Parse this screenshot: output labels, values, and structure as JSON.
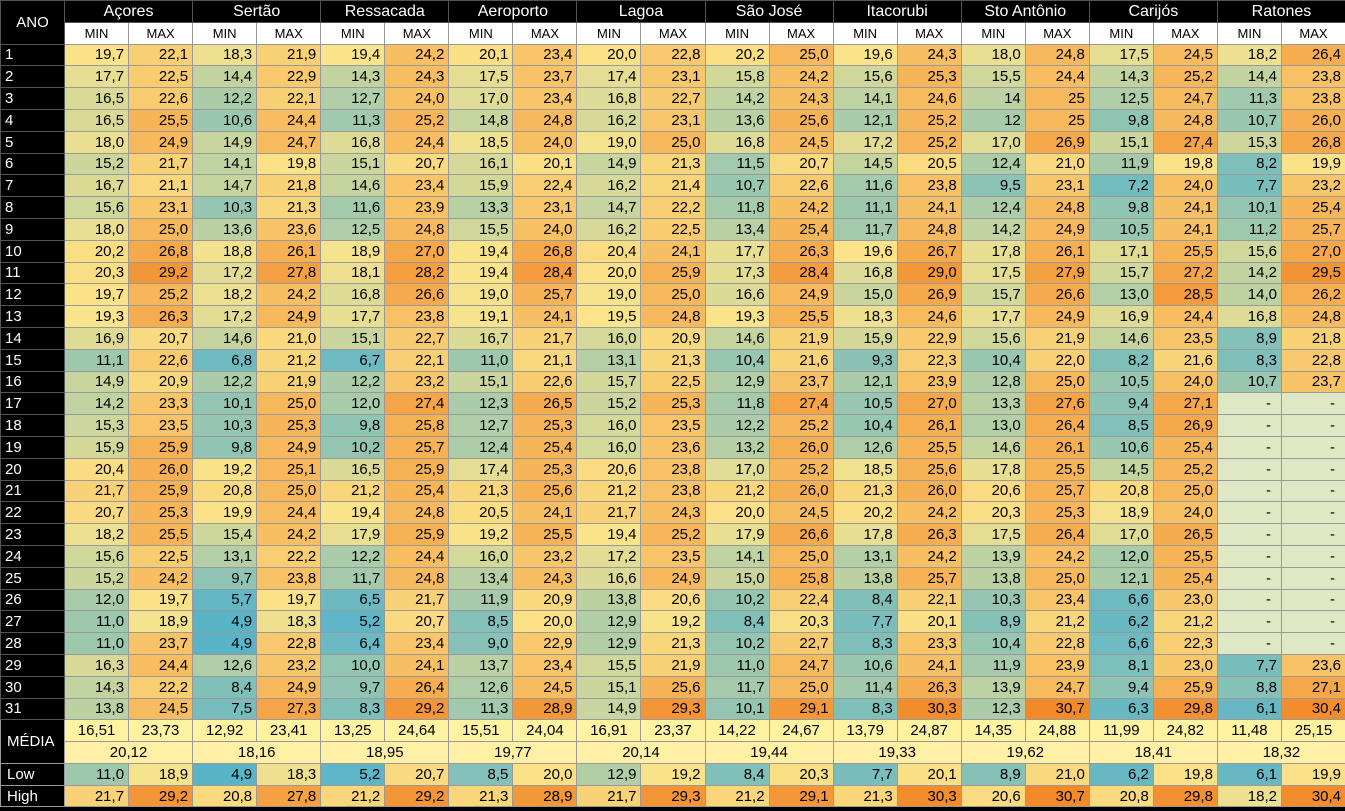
{
  "header": {
    "ano": "ANO",
    "min": "MIN",
    "max": "MAX"
  },
  "stations": [
    "Açores",
    "Sertão",
    "Ressacada",
    "Aeroporto",
    "Lagoa",
    "São José",
    "Itacorubi",
    "Sto Antônio",
    "Carijós",
    "Ratones"
  ],
  "rows": [
    {
      "label": "1",
      "values": [
        "19,7",
        "22,1",
        "18,3",
        "21,9",
        "19,4",
        "24,2",
        "20,1",
        "23,4",
        "20,0",
        "22,8",
        "20,2",
        "25,0",
        "19,6",
        "24,3",
        "18,0",
        "24,8",
        "17,5",
        "24,5",
        "18,2",
        "26,4"
      ]
    },
    {
      "label": "2",
      "values": [
        "17,7",
        "22,5",
        "14,4",
        "22,9",
        "14,3",
        "24,3",
        "17,5",
        "23,7",
        "17,4",
        "23,1",
        "15,8",
        "24,2",
        "15,6",
        "25,3",
        "15,5",
        "24,4",
        "14,3",
        "25,2",
        "14,4",
        "23,8"
      ]
    },
    {
      "label": "3",
      "values": [
        "16,5",
        "22,6",
        "12,2",
        "22,1",
        "12,7",
        "24,0",
        "17,0",
        "23,4",
        "16,8",
        "22,7",
        "14,2",
        "24,3",
        "14,1",
        "24,6",
        "14",
        "25",
        "12,5",
        "24,7",
        "11,3",
        "23,8"
      ]
    },
    {
      "label": "4",
      "values": [
        "16,5",
        "25,5",
        "10,6",
        "24,4",
        "11,3",
        "25,2",
        "14,8",
        "24,8",
        "16,2",
        "23,1",
        "13,6",
        "25,6",
        "12,1",
        "25,2",
        "12",
        "25",
        "9,8",
        "24,8",
        "10,7",
        "26,0"
      ]
    },
    {
      "label": "5",
      "values": [
        "18,0",
        "24,9",
        "14,9",
        "24,7",
        "16,8",
        "24,4",
        "18,5",
        "24,0",
        "19,0",
        "25,0",
        "16,8",
        "24,5",
        "17,2",
        "25,2",
        "17,0",
        "26,9",
        "15,1",
        "27,4",
        "15,3",
        "26,8"
      ]
    },
    {
      "label": "6",
      "values": [
        "15,2",
        "21,7",
        "14,1",
        "19,8",
        "15,1",
        "20,7",
        "16,1",
        "20,1",
        "14,9",
        "21,3",
        "11,5",
        "20,7",
        "14,5",
        "20,5",
        "12,4",
        "21,0",
        "11,9",
        "19,8",
        "8,2",
        "19,9"
      ]
    },
    {
      "label": "7",
      "values": [
        "16,7",
        "21,1",
        "14,7",
        "21,8",
        "14,6",
        "23,4",
        "15,9",
        "22,4",
        "16,2",
        "21,4",
        "10,7",
        "22,6",
        "11,6",
        "23,8",
        "9,5",
        "23,1",
        "7,2",
        "24,0",
        "7,7",
        "23,2"
      ]
    },
    {
      "label": "8",
      "values": [
        "15,6",
        "23,1",
        "10,3",
        "21,3",
        "11,6",
        "23,9",
        "13,3",
        "23,1",
        "14,7",
        "22,2",
        "11,8",
        "24,2",
        "11,1",
        "24,1",
        "12,4",
        "24,8",
        "9,8",
        "24,1",
        "10,1",
        "25,4"
      ]
    },
    {
      "label": "9",
      "values": [
        "18,0",
        "25,0",
        "13,6",
        "23,6",
        "12,5",
        "24,8",
        "15,5",
        "24,0",
        "16,2",
        "22,5",
        "13,4",
        "25,4",
        "11,7",
        "24,8",
        "14,2",
        "24,9",
        "10,5",
        "24,1",
        "11,2",
        "25,7"
      ]
    },
    {
      "label": "10",
      "values": [
        "20,2",
        "26,8",
        "18,8",
        "26,1",
        "18,9",
        "27,0",
        "19,4",
        "26,8",
        "20,4",
        "24,1",
        "17,7",
        "26,3",
        "19,6",
        "26,7",
        "17,8",
        "26,1",
        "17,1",
        "25,5",
        "15,6",
        "27,0"
      ]
    },
    {
      "label": "11",
      "values": [
        "20,3",
        "29,2",
        "17,2",
        "27,8",
        "18,1",
        "28,2",
        "19,4",
        "28,4",
        "20,0",
        "25,9",
        "17,3",
        "28,4",
        "16,8",
        "29,0",
        "17,5",
        "27,9",
        "15,7",
        "27,2",
        "14,2",
        "29,5"
      ]
    },
    {
      "label": "12",
      "values": [
        "19,7",
        "25,2",
        "18,2",
        "24,2",
        "16,8",
        "26,6",
        "19,0",
        "25,7",
        "19,0",
        "25,0",
        "16,6",
        "24,9",
        "15,0",
        "26,9",
        "15,7",
        "26,6",
        "13,0",
        "28,5",
        "14,0",
        "26,2"
      ]
    },
    {
      "label": "13",
      "values": [
        "19,3",
        "26,3",
        "17,2",
        "24,9",
        "17,7",
        "23,8",
        "19,1",
        "24,1",
        "19,5",
        "24,8",
        "19,3",
        "25,5",
        "18,3",
        "24,6",
        "17,7",
        "24,9",
        "16,9",
        "24,4",
        "16,8",
        "24,8"
      ]
    },
    {
      "label": "14",
      "values": [
        "16,9",
        "20,7",
        "14,6",
        "21,0",
        "15,1",
        "22,7",
        "16,7",
        "21,7",
        "16,0",
        "20,9",
        "14,6",
        "21,9",
        "15,9",
        "22,9",
        "15,6",
        "21,9",
        "14,6",
        "23,5",
        "8,9",
        "21,8"
      ]
    },
    {
      "label": "15",
      "values": [
        "11,1",
        "22,6",
        "6,8",
        "21,2",
        "6,7",
        "22,1",
        "11,0",
        "21,1",
        "13,1",
        "21,3",
        "10,4",
        "21,6",
        "9,3",
        "22,3",
        "10,4",
        "22,0",
        "8,2",
        "21,6",
        "8,3",
        "22,8"
      ]
    },
    {
      "label": "16",
      "values": [
        "14,9",
        "20,9",
        "12,2",
        "21,9",
        "12,2",
        "23,2",
        "15,1",
        "22,6",
        "15,7",
        "22,5",
        "12,9",
        "23,7",
        "12,1",
        "23,9",
        "12,8",
        "25,0",
        "10,5",
        "24,0",
        "10,7",
        "23,7"
      ]
    },
    {
      "label": "17",
      "values": [
        "14,2",
        "23,3",
        "10,1",
        "25,0",
        "12,0",
        "27,4",
        "12,3",
        "26,5",
        "15,2",
        "25,3",
        "11,8",
        "27,4",
        "10,5",
        "27,0",
        "13,3",
        "27,6",
        "9,4",
        "27,1",
        "-",
        "-"
      ]
    },
    {
      "label": "18",
      "values": [
        "15,3",
        "23,5",
        "10,3",
        "25,3",
        "9,8",
        "25,8",
        "12,7",
        "25,3",
        "16,0",
        "23,5",
        "12,2",
        "25,2",
        "10,4",
        "26,1",
        "13,0",
        "26,4",
        "8,5",
        "26,9",
        "-",
        "-"
      ]
    },
    {
      "label": "19",
      "values": [
        "15,9",
        "25,9",
        "9,8",
        "24,9",
        "10,2",
        "25,7",
        "12,4",
        "25,4",
        "16,0",
        "23,6",
        "13,2",
        "26,0",
        "12,6",
        "25,5",
        "14,6",
        "26,1",
        "10,6",
        "25,4",
        "-",
        "-"
      ]
    },
    {
      "label": "20",
      "values": [
        "20,4",
        "26,0",
        "19,2",
        "25,1",
        "16,5",
        "25,9",
        "17,4",
        "25,3",
        "20,6",
        "23,8",
        "17,0",
        "25,2",
        "18,5",
        "25,6",
        "17,8",
        "25,5",
        "14,5",
        "25,2",
        "-",
        "-"
      ]
    },
    {
      "label": "21",
      "values": [
        "21,7",
        "25,9",
        "20,8",
        "25,0",
        "21,2",
        "25,4",
        "21,3",
        "25,6",
        "21,2",
        "23,8",
        "21,2",
        "26,0",
        "21,3",
        "26,0",
        "20,6",
        "25,7",
        "20,8",
        "25,0",
        "-",
        "-"
      ]
    },
    {
      "label": "22",
      "values": [
        "20,7",
        "25,3",
        "19,9",
        "24,4",
        "19,4",
        "24,8",
        "20,5",
        "24,1",
        "21,7",
        "24,3",
        "20,0",
        "24,5",
        "20,2",
        "24,2",
        "20,3",
        "25,3",
        "18,9",
        "24,0",
        "-",
        "-"
      ]
    },
    {
      "label": "23",
      "values": [
        "18,2",
        "25,5",
        "15,4",
        "24,2",
        "17,9",
        "25,9",
        "19,2",
        "25,5",
        "19,4",
        "25,2",
        "17,9",
        "26,6",
        "17,8",
        "26,3",
        "17,5",
        "26,4",
        "17,0",
        "26,5",
        "-",
        "-"
      ]
    },
    {
      "label": "24",
      "values": [
        "15,6",
        "22,5",
        "13,1",
        "22,2",
        "12,2",
        "24,4",
        "16,0",
        "23,2",
        "17,2",
        "23,5",
        "14,1",
        "25,0",
        "13,1",
        "24,2",
        "13,9",
        "24,2",
        "12,0",
        "25,5",
        "-",
        "-"
      ]
    },
    {
      "label": "25",
      "values": [
        "15,2",
        "24,2",
        "9,7",
        "23,8",
        "11,7",
        "24,8",
        "13,4",
        "24,3",
        "16,6",
        "24,9",
        "15,0",
        "25,8",
        "13,8",
        "25,7",
        "13,8",
        "25,0",
        "12,1",
        "25,4",
        "-",
        "-"
      ]
    },
    {
      "label": "26",
      "values": [
        "12,0",
        "19,7",
        "5,7",
        "19,7",
        "6,5",
        "21,7",
        "11,9",
        "20,9",
        "13,8",
        "20,6",
        "10,2",
        "22,4",
        "8,4",
        "22,1",
        "10,3",
        "23,4",
        "6,6",
        "23,0",
        "-",
        "-"
      ]
    },
    {
      "label": "27",
      "values": [
        "11,0",
        "18,9",
        "4,9",
        "18,3",
        "5,2",
        "20,7",
        "8,5",
        "20,0",
        "12,9",
        "19,2",
        "8,4",
        "20,3",
        "7,7",
        "20,1",
        "8,9",
        "21,2",
        "6,2",
        "21,2",
        "-",
        "-"
      ]
    },
    {
      "label": "28",
      "values": [
        "11,0",
        "23,7",
        "4,9",
        "22,8",
        "6,4",
        "23,4",
        "9,0",
        "22,9",
        "12,9",
        "21,3",
        "10,2",
        "22,7",
        "8,3",
        "23,3",
        "10,4",
        "22,8",
        "6,6",
        "22,3",
        "-",
        "-"
      ]
    },
    {
      "label": "29",
      "values": [
        "16,3",
        "24,4",
        "12,6",
        "23,2",
        "10,0",
        "24,1",
        "13,7",
        "23,4",
        "15,5",
        "21,9",
        "11,0",
        "24,7",
        "10,6",
        "24,1",
        "11,9",
        "23,9",
        "8,1",
        "23,0",
        "7,7",
        "23,6"
      ]
    },
    {
      "label": "30",
      "values": [
        "14,3",
        "22,2",
        "8,4",
        "24,9",
        "9,7",
        "26,4",
        "12,6",
        "24,5",
        "15,1",
        "25,6",
        "11,7",
        "25,0",
        "11,4",
        "26,3",
        "13,9",
        "24,7",
        "9,4",
        "25,9",
        "8,8",
        "27,1"
      ]
    },
    {
      "label": "31",
      "values": [
        "13,8",
        "24,5",
        "7,5",
        "27,3",
        "8,3",
        "29,2",
        "11,3",
        "28,9",
        "14,9",
        "29,3",
        "10,1",
        "29,1",
        "8,3",
        "30,3",
        "12,3",
        "30,7",
        "6,3",
        "29,8",
        "6,1",
        "30,4"
      ]
    }
  ],
  "media": {
    "label": "MÉDIA",
    "values": [
      "16,51",
      "23,73",
      "12,92",
      "23,41",
      "13,25",
      "24,64",
      "15,51",
      "24,04",
      "16,91",
      "23,37",
      "14,22",
      "24,67",
      "13,79",
      "24,87",
      "14,35",
      "24,88",
      "11,99",
      "24,82",
      "11,48",
      "25,15"
    ],
    "means": [
      "20,12",
      "18,16",
      "18,95",
      "19,77",
      "20,14",
      "19,44",
      "19,33",
      "19,62",
      "18,41",
      "18,32"
    ]
  },
  "low": {
    "label": "Low",
    "values": [
      "11,0",
      "18,9",
      "4,9",
      "18,3",
      "5,2",
      "20,7",
      "8,5",
      "20,0",
      "12,9",
      "19,2",
      "8,4",
      "20,3",
      "7,7",
      "20,1",
      "8,9",
      "21,0",
      "6,2",
      "19,8",
      "6,1",
      "19,9"
    ]
  },
  "high": {
    "label": "High",
    "values": [
      "21,7",
      "29,2",
      "20,8",
      "27,8",
      "21,2",
      "29,2",
      "21,3",
      "28,9",
      "21,7",
      "29,3",
      "21,2",
      "29,1",
      "21,3",
      "30,3",
      "20,6",
      "30,7",
      "20,8",
      "29,8",
      "18,2",
      "30,4"
    ]
  },
  "colors": {
    "scale_low": "#5ab4c8",
    "scale_mid": "#fbe48a",
    "scale_high": "#f28a2a",
    "empty": "#dfe8c4",
    "mean": "#fff0a6"
  }
}
